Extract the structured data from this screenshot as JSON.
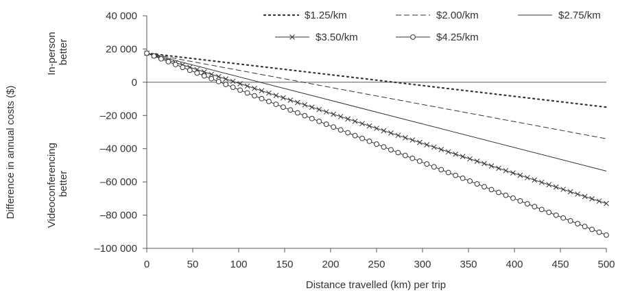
{
  "chart_data": {
    "type": "line",
    "title": "",
    "xlabel": "Distance travelled (km) per trip",
    "ylabel": "Difference in annual costs ($)",
    "region_labels": {
      "upper": [
        "In-person",
        "better"
      ],
      "lower": [
        "Videoconferencing",
        "better"
      ]
    },
    "xlim": [
      0,
      500
    ],
    "ylim": [
      -100000,
      40000
    ],
    "xticks": [
      0,
      50,
      100,
      150,
      200,
      250,
      300,
      350,
      400,
      450,
      500
    ],
    "yticks": [
      40000,
      20000,
      0,
      -20000,
      -40000,
      -60000,
      -80000,
      -100000
    ],
    "ytick_labels": [
      "40 000",
      "20 000",
      "0",
      "–20 000",
      "–40 000",
      "–60 000",
      "–80 000",
      "–100 000"
    ],
    "grid": false,
    "zero_line": true,
    "legend_position": "top-right",
    "series": [
      {
        "name": "$1.25/km",
        "style": "dotted",
        "marker": "none",
        "x": [
          0,
          500
        ],
        "y": [
          17500,
          -15000
        ]
      },
      {
        "name": "$2.00/km",
        "style": "dashed",
        "marker": "none",
        "x": [
          0,
          500
        ],
        "y": [
          17500,
          -34000
        ]
      },
      {
        "name": "$2.75/km",
        "style": "solid",
        "marker": "none",
        "x": [
          0,
          500
        ],
        "y": [
          17500,
          -53500
        ]
      },
      {
        "name": "$3.50/km",
        "style": "solid",
        "marker": "x",
        "x": [
          0,
          500
        ],
        "y": [
          17500,
          -73000
        ]
      },
      {
        "name": "$4.25/km",
        "style": "solid",
        "marker": "circle",
        "x": [
          0,
          500
        ],
        "y": [
          17500,
          -92000
        ]
      }
    ],
    "colors": {
      "line": "#333333",
      "axis": "#555555",
      "text": "#333333"
    }
  }
}
